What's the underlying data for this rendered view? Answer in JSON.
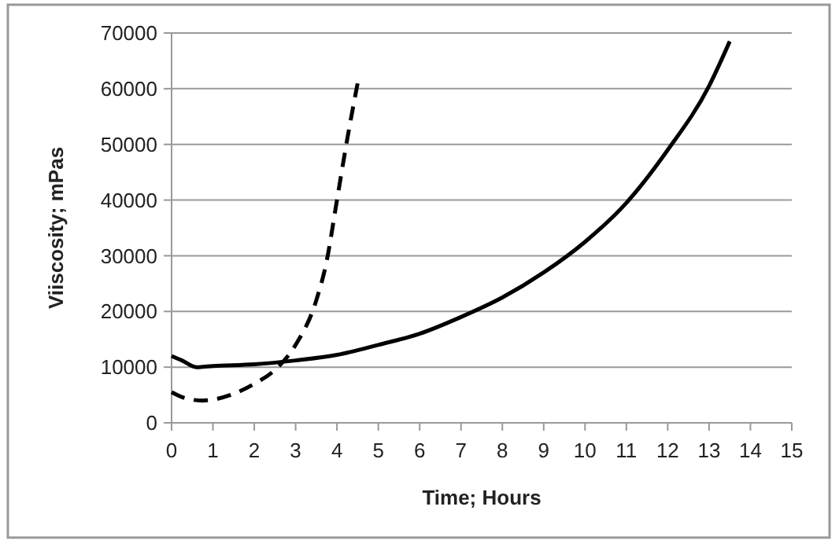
{
  "chart_data": {
    "type": "line",
    "xlabel": "Time; Hours",
    "ylabel": "Viiscosity; mPas",
    "xlim": [
      0,
      15
    ],
    "xticks": [
      0,
      1,
      2,
      3,
      4,
      5,
      6,
      7,
      8,
      9,
      10,
      11,
      12,
      13,
      14,
      15
    ],
    "ylim": [
      0,
      70000
    ],
    "yticks": [
      0,
      10000,
      20000,
      30000,
      40000,
      50000,
      60000,
      70000
    ],
    "grid": "y",
    "marker": "none",
    "series": [
      {
        "color": "#000000",
        "line_style": "solid",
        "x": [
          0,
          0.25,
          0.6,
          1,
          2,
          3,
          4,
          5,
          6,
          7,
          8,
          9,
          10,
          11,
          12,
          13,
          13.5
        ],
        "values": [
          12000,
          11200,
          10000,
          10200,
          10500,
          11200,
          12200,
          14000,
          16000,
          19000,
          22500,
          27000,
          32500,
          39500,
          49000,
          60500,
          68500
        ]
      },
      {
        "color": "#000000",
        "line_style": "dashed",
        "x": [
          0,
          0.3,
          0.75,
          1.5,
          2,
          2.5,
          3,
          3.5,
          3.75,
          4,
          4.25,
          4.5
        ],
        "values": [
          5500,
          4500,
          4000,
          5200,
          7000,
          9500,
          14000,
          22000,
          29000,
          40000,
          51000,
          61000
        ]
      }
    ]
  }
}
